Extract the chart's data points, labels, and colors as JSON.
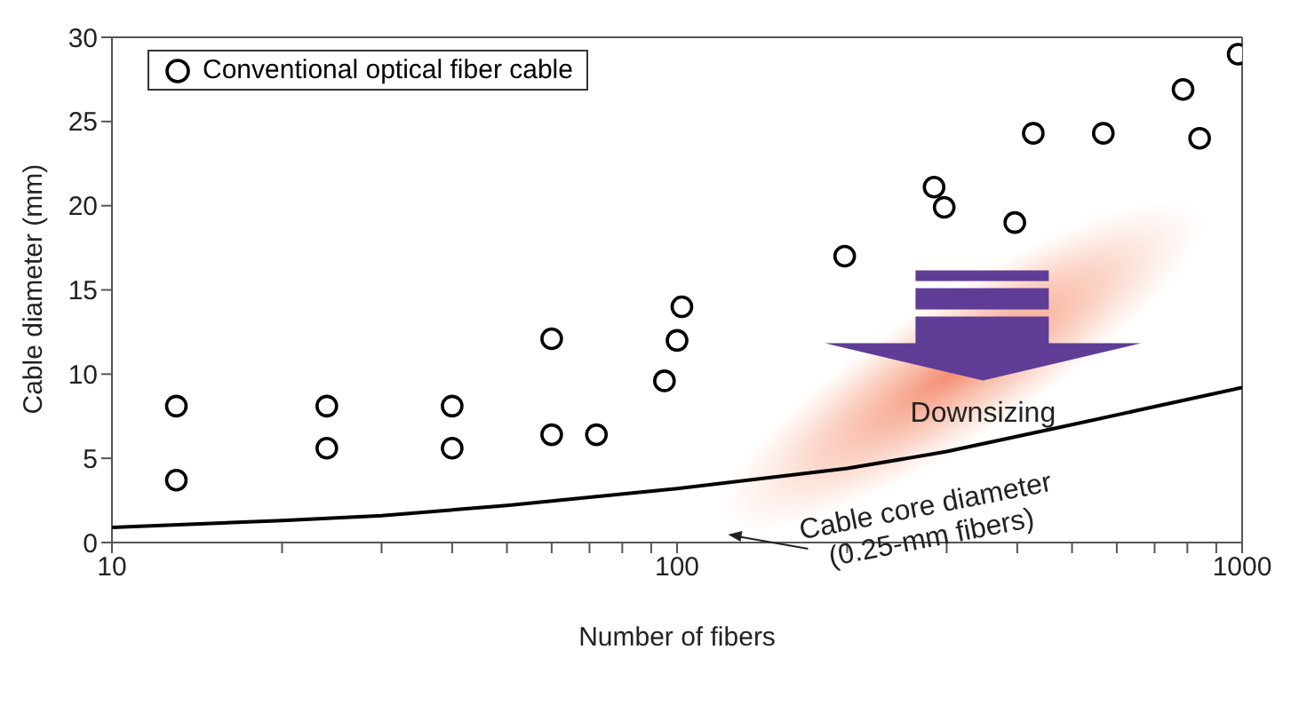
{
  "chart_data": {
    "type": "scatter",
    "xlabel": "Number of fibers",
    "ylabel": "Cable diameter (mm)",
    "log": "x",
    "xlim": [
      10,
      1000
    ],
    "xticks": [
      10,
      {
        "value": 20,
        "label": null
      },
      {
        "value": 30,
        "label": null
      },
      {
        "value": 40,
        "label": null
      },
      {
        "value": 50,
        "label": null
      },
      {
        "value": 60,
        "label": null
      },
      {
        "value": 70,
        "label": null
      },
      {
        "value": 80,
        "label": null
      },
      {
        "value": 90,
        "label": null
      },
      100,
      {
        "value": 200,
        "label": null
      },
      {
        "value": 300,
        "label": null
      },
      {
        "value": 400,
        "label": null
      },
      {
        "value": 500,
        "label": null
      },
      {
        "value": 600,
        "label": null
      },
      {
        "value": 700,
        "label": null
      },
      {
        "value": 800,
        "label": null
      },
      {
        "value": 900,
        "label": null
      },
      1000
    ],
    "ylim": [
      0,
      30
    ],
    "yticks": [
      0,
      5,
      10,
      15,
      20,
      25,
      30
    ],
    "grid": false,
    "legend": "top left",
    "marker": "circle",
    "series": [
      {
        "name": "Conventional optical fiber cable",
        "color": "#000000",
        "x": [
          13,
          13,
          24,
          24,
          40,
          40,
          60,
          60,
          72,
          95,
          100,
          102,
          198,
          285,
          297,
          396,
          427,
          568,
          786,
          841,
          984
        ],
        "values": [
          8.1,
          3.7,
          8.1,
          5.6,
          8.1,
          5.6,
          12.1,
          6.4,
          6.4,
          9.6,
          12.0,
          14.0,
          17.0,
          21.1,
          19.9,
          19.0,
          24.3,
          24.3,
          26.9,
          24.0,
          29.0
        ]
      },
      {
        "type": "line",
        "marker": "none",
        "line_style": "solid",
        "color": "#000000",
        "x": [
          10,
          20,
          30,
          50,
          100,
          200,
          300,
          500,
          1000
        ],
        "values": [
          0.9,
          1.3,
          1.6,
          2.2,
          3.2,
          4.4,
          5.4,
          7.0,
          9.2
        ]
      }
    ],
    "annotations": [
      {
        "text": "Cable core diameter\n(0.25-mm fibers)",
        "x": 120,
        "y": 2.9
      },
      "Downsizing"
    ]
  }
}
